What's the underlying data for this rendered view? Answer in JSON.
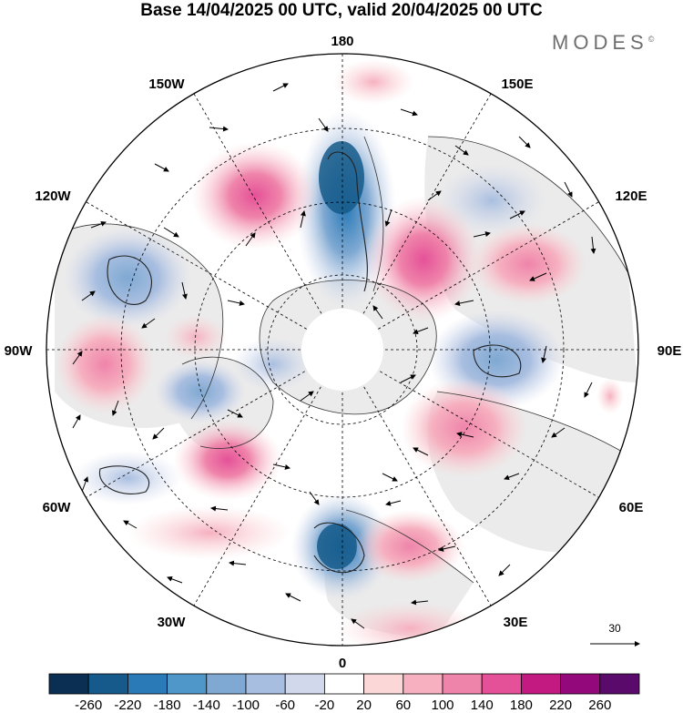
{
  "title": "Base 14/04/2025 00 UTC, valid 20/04/2025 00 UTC",
  "brand": "MODES",
  "brand_mark": "©",
  "longitude_labels": [
    "180",
    "150E",
    "120E",
    "90E",
    "60E",
    "30E",
    "0",
    "30W",
    "60W",
    "90W",
    "120W",
    "150W"
  ],
  "reference_vector": {
    "label": "30"
  },
  "colorbar": {
    "colors": [
      "#0a2f52",
      "#155a8a",
      "#2a7ab8",
      "#4f97c9",
      "#7fa9d2",
      "#a8bee0",
      "#d2d8ec",
      "#ffffff",
      "#fbd7d7",
      "#f6b0c0",
      "#ef84aa",
      "#e55198",
      "#c31a82",
      "#93087a",
      "#5a0a6b"
    ],
    "ticks": [
      "-260",
      "-220",
      "-180",
      "-140",
      "-100",
      "-60",
      "-20",
      "20",
      "60",
      "100",
      "140",
      "180",
      "220",
      "260"
    ]
  }
}
